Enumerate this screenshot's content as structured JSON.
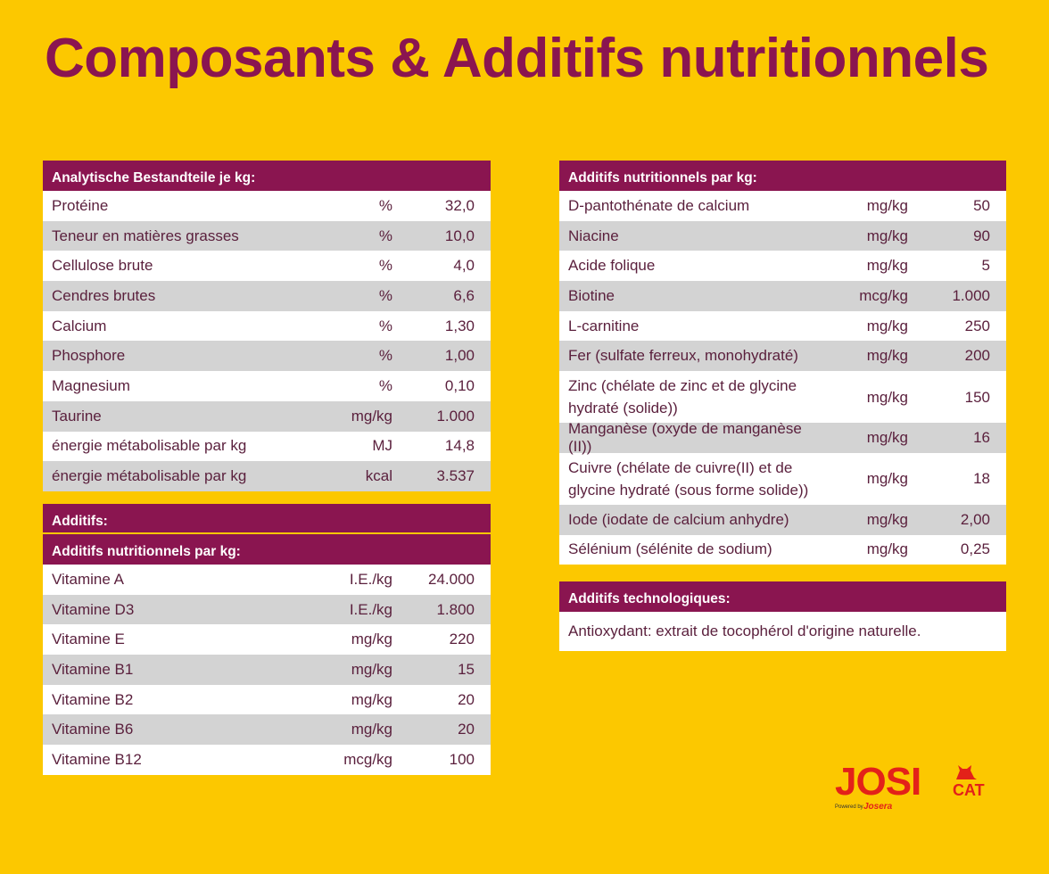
{
  "title": "Composants & Additifs nutritionnels",
  "analytical": {
    "header": "Analytische Bestandteile je kg:",
    "rows": [
      {
        "name": "Protéine",
        "unit": "%",
        "value": "32,0"
      },
      {
        "name": "Teneur en matières grasses",
        "unit": "%",
        "value": "10,0"
      },
      {
        "name": "Cellulose brute",
        "unit": "%",
        "value": "4,0"
      },
      {
        "name": "Cendres brutes",
        "unit": "%",
        "value": "6,6"
      },
      {
        "name": "Calcium",
        "unit": "%",
        "value": "1,30"
      },
      {
        "name": "Phosphore",
        "unit": "%",
        "value": "1,00"
      },
      {
        "name": "Magnesium",
        "unit": "%",
        "value": "0,10"
      },
      {
        "name": "Taurine",
        "unit": "mg/kg",
        "value": "1.000"
      },
      {
        "name": "énergie métabolisable par kg",
        "unit": "MJ",
        "value": "14,8"
      },
      {
        "name": "énergie métabolisable par kg",
        "unit": "kcal",
        "value": "3.537"
      }
    ]
  },
  "additives": {
    "header": "Additifs:",
    "subheader": "Additifs nutritionnels par kg:",
    "rows": [
      {
        "name": "Vitamine A",
        "unit": "I.E./kg",
        "value": "24.000"
      },
      {
        "name": "Vitamine D3",
        "unit": "I.E./kg",
        "value": "1.800"
      },
      {
        "name": "Vitamine E",
        "unit": "mg/kg",
        "value": "220"
      },
      {
        "name": "Vitamine B1",
        "unit": "mg/kg",
        "value": "15"
      },
      {
        "name": "Vitamine B2",
        "unit": "mg/kg",
        "value": "20"
      },
      {
        "name": "Vitamine B6",
        "unit": "mg/kg",
        "value": "20"
      },
      {
        "name": "Vitamine B12",
        "unit": "mcg/kg",
        "value": "100"
      }
    ]
  },
  "nutritional": {
    "header": "Additifs nutritionnels par kg:",
    "rows": [
      {
        "name": "D-pantothénate de calcium",
        "unit": "mg/kg",
        "value": "50"
      },
      {
        "name": "Niacine",
        "unit": "mg/kg",
        "value": "90"
      },
      {
        "name": "Acide folique",
        "unit": "mg/kg",
        "value": "5"
      },
      {
        "name": "Biotine",
        "unit": "mcg/kg",
        "value": "1.000"
      },
      {
        "name": "L-carnitine",
        "unit": "mg/kg",
        "value": "250"
      },
      {
        "name": "Fer (sulfate ferreux, monohydraté)",
        "unit": "mg/kg",
        "value": "200"
      },
      {
        "name": "Zinc (chélate de zinc et de glycine hydraté (solide))",
        "unit": "mg/kg",
        "value": "150"
      },
      {
        "name": "Manganèse (oxyde de manganèse (II))",
        "unit": "mg/kg",
        "value": "16"
      },
      {
        "name": "Cuivre (chélate de cuivre(II) et de glycine hydraté (sous forme solide))",
        "unit": "mg/kg",
        "value": "18"
      },
      {
        "name": "Iode (iodate de calcium anhydre)",
        "unit": "mg/kg",
        "value": "2,00"
      },
      {
        "name": "Sélénium (sélénite de sodium)",
        "unit": "mg/kg",
        "value": "0,25"
      }
    ]
  },
  "technological": {
    "header": "Additifs technologiques:",
    "text": "Antioxydant: extrait de tocophérol d'origine naturelle."
  },
  "logo": {
    "brand": "JOSI",
    "sub": "CAT",
    "powered": "Powered by",
    "maker": "Josera",
    "color": "#E32119"
  },
  "colors": {
    "background": "#FCC800",
    "header": "#8A1550",
    "stripe": "#D3D3D3"
  }
}
